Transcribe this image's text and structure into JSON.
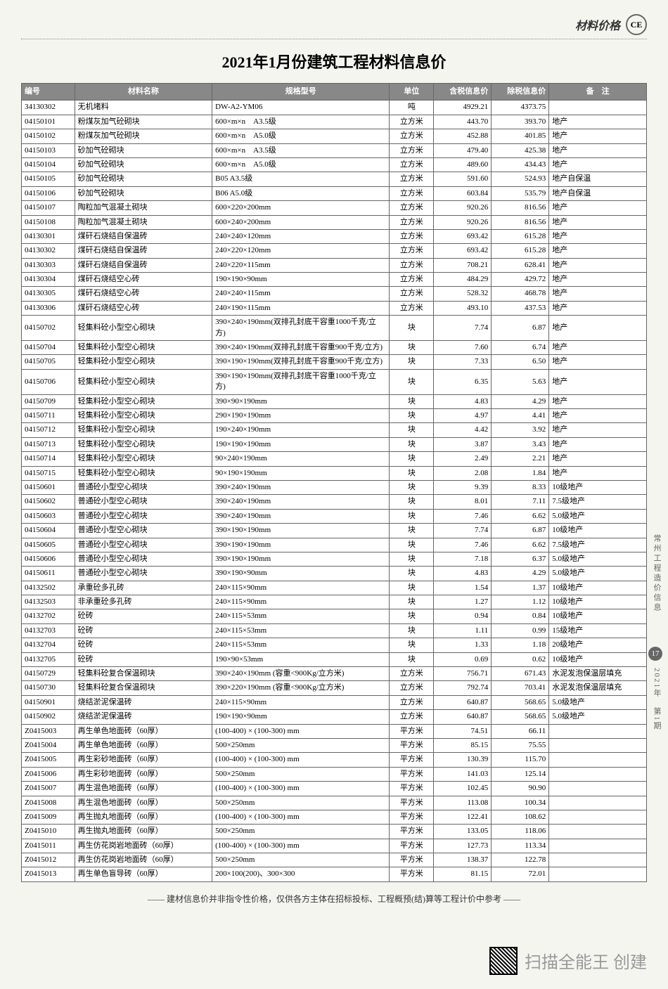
{
  "header": {
    "label": "材料价格",
    "logo": "CE"
  },
  "title": "2021年1月份建筑工程材料信息价",
  "table": {
    "headers": [
      "编号",
      "材料名称",
      "规格型号",
      "单位",
      "含税信息价",
      "除税信息价",
      "备　注"
    ],
    "rows": [
      [
        "34130302",
        "无机堵料",
        "DW-A2-YM06",
        "吨",
        "4929.21",
        "4373.75",
        ""
      ],
      [
        "04150101",
        "粉煤灰加气砼砌块",
        "600×m×n　A3.5级",
        "立方米",
        "443.70",
        "393.70",
        "地产"
      ],
      [
        "04150102",
        "粉煤灰加气砼砌块",
        "600×m×n　A5.0级",
        "立方米",
        "452.88",
        "401.85",
        "地产"
      ],
      [
        "04150103",
        "砂加气砼砌块",
        "600×m×n　A3.5级",
        "立方米",
        "479.40",
        "425.38",
        "地产"
      ],
      [
        "04150104",
        "砂加气砼砌块",
        "600×m×n　A5.0级",
        "立方米",
        "489.60",
        "434.43",
        "地产"
      ],
      [
        "04150105",
        "砂加气砼砌块",
        "B05 A3.5级",
        "立方米",
        "591.60",
        "524.93",
        "地产自保温"
      ],
      [
        "04150106",
        "砂加气砼砌块",
        "B06 A5.0级",
        "立方米",
        "603.84",
        "535.79",
        "地产自保温"
      ],
      [
        "04150107",
        "陶粒加气混凝土砌块",
        "600×220×200mm",
        "立方米",
        "920.26",
        "816.56",
        "地产"
      ],
      [
        "04150108",
        "陶粒加气混凝土砌块",
        "600×240×200mm",
        "立方米",
        "920.26",
        "816.56",
        "地产"
      ],
      [
        "04130301",
        "煤矸石烧结自保温砖",
        "240×240×120mm",
        "立方米",
        "693.42",
        "615.28",
        "地产"
      ],
      [
        "04130302",
        "煤矸石烧结自保温砖",
        "240×220×120mm",
        "立方米",
        "693.42",
        "615.28",
        "地产"
      ],
      [
        "04130303",
        "煤矸石烧结自保温砖",
        "240×220×115mm",
        "立方米",
        "708.21",
        "628.41",
        "地产"
      ],
      [
        "04130304",
        "煤矸石烧结空心砖",
        "190×190×90mm",
        "立方米",
        "484.29",
        "429.72",
        "地产"
      ],
      [
        "04130305",
        "煤矸石烧结空心砖",
        "240×240×115mm",
        "立方米",
        "528.32",
        "468.78",
        "地产"
      ],
      [
        "04130306",
        "煤矸石烧结空心砖",
        "240×190×115mm",
        "立方米",
        "493.10",
        "437.53",
        "地产"
      ],
      [
        "04150702",
        "轻集料砼小型空心砌块",
        "390×240×190mm(双排孔封底干容重1000千克/立方)",
        "块",
        "7.74",
        "6.87",
        "地产"
      ],
      [
        "04150704",
        "轻集料砼小型空心砌块",
        "390×240×190mm(双排孔封底干容重900千克/立方)",
        "块",
        "7.60",
        "6.74",
        "地产"
      ],
      [
        "04150705",
        "轻集料砼小型空心砌块",
        "390×190×190mm(双排孔封底干容重900千克/立方)",
        "块",
        "7.33",
        "6.50",
        "地产"
      ],
      [
        "04150706",
        "轻集料砼小型空心砌块",
        "390×190×190mm(双排孔封底干容重1000千克/立方)",
        "块",
        "6.35",
        "5.63",
        "地产"
      ],
      [
        "04150709",
        "轻集料砼小型空心砌块",
        "390×90×190mm",
        "块",
        "4.83",
        "4.29",
        "地产"
      ],
      [
        "04150711",
        "轻集料砼小型空心砌块",
        "290×190×190mm",
        "块",
        "4.97",
        "4.41",
        "地产"
      ],
      [
        "04150712",
        "轻集料砼小型空心砌块",
        "190×240×190mm",
        "块",
        "4.42",
        "3.92",
        "地产"
      ],
      [
        "04150713",
        "轻集料砼小型空心砌块",
        "190×190×190mm",
        "块",
        "3.87",
        "3.43",
        "地产"
      ],
      [
        "04150714",
        "轻集料砼小型空心砌块",
        "90×240×190mm",
        "块",
        "2.49",
        "2.21",
        "地产"
      ],
      [
        "04150715",
        "轻集料砼小型空心砌块",
        "90×190×190mm",
        "块",
        "2.08",
        "1.84",
        "地产"
      ],
      [
        "04150601",
        "普通砼小型空心砌块",
        "390×240×190mm",
        "块",
        "9.39",
        "8.33",
        "10级地产"
      ],
      [
        "04150602",
        "普通砼小型空心砌块",
        "390×240×190mm",
        "块",
        "8.01",
        "7.11",
        "7.5级地产"
      ],
      [
        "04150603",
        "普通砼小型空心砌块",
        "390×240×190mm",
        "块",
        "7.46",
        "6.62",
        "5.0级地产"
      ],
      [
        "04150604",
        "普通砼小型空心砌块",
        "390×190×190mm",
        "块",
        "7.74",
        "6.87",
        "10级地产"
      ],
      [
        "04150605",
        "普通砼小型空心砌块",
        "390×190×190mm",
        "块",
        "7.46",
        "6.62",
        "7.5级地产"
      ],
      [
        "04150606",
        "普通砼小型空心砌块",
        "390×190×190mm",
        "块",
        "7.18",
        "6.37",
        "5.0级地产"
      ],
      [
        "04150611",
        "普通砼小型空心砌块",
        "390×190×90mm",
        "块",
        "4.83",
        "4.29",
        "5.0级地产"
      ],
      [
        "04132502",
        "承重砼多孔砖",
        "240×115×90mm",
        "块",
        "1.54",
        "1.37",
        "10级地产"
      ],
      [
        "04132503",
        "非承重砼多孔砖",
        "240×115×90mm",
        "块",
        "1.27",
        "1.12",
        "10级地产"
      ],
      [
        "04132702",
        "砼砖",
        "240×115×53mm",
        "块",
        "0.94",
        "0.84",
        "10级地产"
      ],
      [
        "04132703",
        "砼砖",
        "240×115×53mm",
        "块",
        "1.11",
        "0.99",
        "15级地产"
      ],
      [
        "04132704",
        "砼砖",
        "240×115×53mm",
        "块",
        "1.33",
        "1.18",
        "20级地产"
      ],
      [
        "04132705",
        "砼砖",
        "190×90×53mm",
        "块",
        "0.69",
        "0.62",
        "10级地产"
      ],
      [
        "04150729",
        "轻集料砼复合保温砌块",
        "390×240×190mm (容重<900Kg/立方米)",
        "立方米",
        "756.71",
        "671.43",
        "水泥发泡保温层填充"
      ],
      [
        "04150730",
        "轻集料砼复合保温砌块",
        "390×220×190mm (容重<900Kg/立方米)",
        "立方米",
        "792.74",
        "703.41",
        "水泥发泡保温层填充"
      ],
      [
        "04150901",
        "烧结淤泥保温砖",
        "240×115×90mm",
        "立方米",
        "640.87",
        "568.65",
        "5.0级地产"
      ],
      [
        "04150902",
        "烧结淤泥保温砖",
        "190×190×90mm",
        "立方米",
        "640.87",
        "568.65",
        "5.0级地产"
      ],
      [
        "Z0415003",
        "再生单色地面砖（60厚）",
        "(100-400) × (100-300) mm",
        "平方米",
        "74.51",
        "66.11",
        ""
      ],
      [
        "Z0415004",
        "再生单色地面砖（60厚）",
        "500×250mm",
        "平方米",
        "85.15",
        "75.55",
        ""
      ],
      [
        "Z0415005",
        "再生彩砂地面砖（60厚）",
        "(100-400) × (100-300) mm",
        "平方米",
        "130.39",
        "115.70",
        ""
      ],
      [
        "Z0415006",
        "再生彩砂地面砖（60厚）",
        "500×250mm",
        "平方米",
        "141.03",
        "125.14",
        ""
      ],
      [
        "Z0415007",
        "再生混色地面砖（60厚）",
        "(100-400) × (100-300) mm",
        "平方米",
        "102.45",
        "90.90",
        ""
      ],
      [
        "Z0415008",
        "再生混色地面砖（60厚）",
        "500×250mm",
        "平方米",
        "113.08",
        "100.34",
        ""
      ],
      [
        "Z0415009",
        "再生抛丸地面砖（60厚）",
        "(100-400) × (100-300) mm",
        "平方米",
        "122.41",
        "108.62",
        ""
      ],
      [
        "Z0415010",
        "再生抛丸地面砖（60厚）",
        "500×250mm",
        "平方米",
        "133.05",
        "118.06",
        ""
      ],
      [
        "Z0415011",
        "再生仿花岗岩地面砖（60厚）",
        "(100-400) × (100-300) mm",
        "平方米",
        "127.73",
        "113.34",
        ""
      ],
      [
        "Z0415012",
        "再生仿花岗岩地面砖（60厚）",
        "500×250mm",
        "平方米",
        "138.37",
        "122.78",
        ""
      ],
      [
        "Z0415013",
        "再生单色盲导砖（60厚）",
        "200×100(200)、300×300",
        "平方米",
        "81.15",
        "72.01",
        ""
      ]
    ]
  },
  "footer_note": "—— 建材信息价并非指令性价格，仅供各方主体在招标投标、工程概预(结)算等工程计价中参考 ——",
  "side": {
    "text1": "常州工程造价信息",
    "badge": "17",
    "text2": "2021年　第1期"
  },
  "scan": {
    "text": "扫描全能王 创建"
  }
}
